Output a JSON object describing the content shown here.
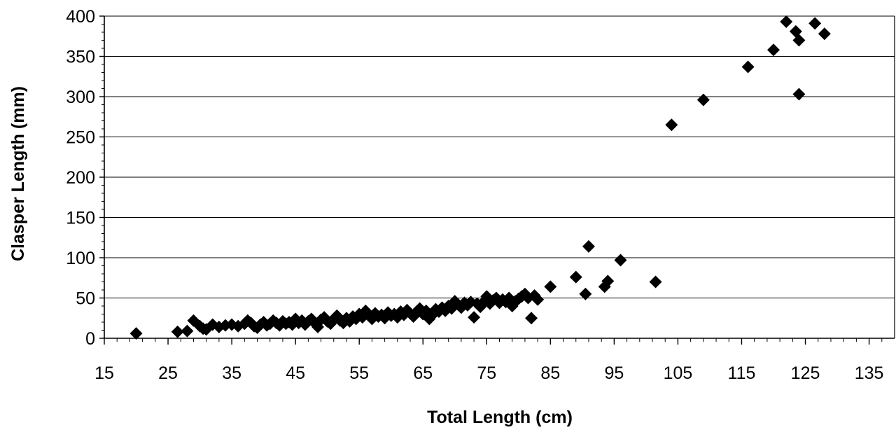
{
  "chart_data": {
    "type": "scatter",
    "title": "",
    "xlabel": "Total Length (cm)",
    "ylabel": "Clasper Length (mm)",
    "xlim": [
      15,
      139
    ],
    "ylim": [
      0,
      400
    ],
    "x_ticks": [
      15,
      25,
      35,
      45,
      55,
      65,
      75,
      85,
      95,
      105,
      115,
      125,
      135
    ],
    "y_ticks": [
      0,
      50,
      100,
      150,
      200,
      250,
      300,
      350,
      400
    ],
    "x_minor_step": 2,
    "y_minor_step": 10,
    "grid": "horizontal",
    "legend": "none",
    "marker": "diamond",
    "marker_color": "#000000",
    "series": [
      {
        "points": [
          [
            20,
            6
          ],
          [
            26.5,
            8
          ],
          [
            28,
            9
          ],
          [
            29,
            22
          ],
          [
            30,
            15
          ],
          [
            30.5,
            12
          ],
          [
            31,
            11
          ],
          [
            32,
            17
          ],
          [
            33,
            14
          ],
          [
            34,
            16
          ],
          [
            35,
            17
          ],
          [
            36,
            15
          ],
          [
            37,
            18
          ],
          [
            37.5,
            22
          ],
          [
            38,
            19
          ],
          [
            38.5,
            15
          ],
          [
            39,
            13
          ],
          [
            39.5,
            17
          ],
          [
            40,
            20
          ],
          [
            40.5,
            16
          ],
          [
            41,
            18
          ],
          [
            41.5,
            22
          ],
          [
            42,
            19
          ],
          [
            42.5,
            16
          ],
          [
            43,
            21
          ],
          [
            43.5,
            18
          ],
          [
            44,
            20
          ],
          [
            44.5,
            17
          ],
          [
            45,
            24
          ],
          [
            45.5,
            19
          ],
          [
            46,
            22
          ],
          [
            46.5,
            17
          ],
          [
            47,
            21
          ],
          [
            47.5,
            24
          ],
          [
            48,
            19
          ],
          [
            48.5,
            14
          ],
          [
            49,
            23
          ],
          [
            49.5,
            26
          ],
          [
            50,
            21
          ],
          [
            50.5,
            18
          ],
          [
            51,
            24
          ],
          [
            51.5,
            28
          ],
          [
            52,
            22
          ],
          [
            52.5,
            19
          ],
          [
            53,
            25
          ],
          [
            53.5,
            21
          ],
          [
            54,
            27
          ],
          [
            54.5,
            24
          ],
          [
            55,
            30
          ],
          [
            55.5,
            26
          ],
          [
            56,
            34
          ],
          [
            56.5,
            28
          ],
          [
            57,
            24
          ],
          [
            57.5,
            31
          ],
          [
            58,
            27
          ],
          [
            58.5,
            29
          ],
          [
            59,
            25
          ],
          [
            59.5,
            32
          ],
          [
            60,
            28
          ],
          [
            60.5,
            30
          ],
          [
            61,
            26
          ],
          [
            61.5,
            33
          ],
          [
            62,
            29
          ],
          [
            62.5,
            35
          ],
          [
            63,
            31
          ],
          [
            63.5,
            27
          ],
          [
            64,
            33
          ],
          [
            64.5,
            37
          ],
          [
            65,
            30
          ],
          [
            65.5,
            34
          ],
          [
            66,
            24
          ],
          [
            66.5,
            29
          ],
          [
            67,
            36
          ],
          [
            67.5,
            33
          ],
          [
            68,
            38
          ],
          [
            68.5,
            34
          ],
          [
            69,
            40
          ],
          [
            69.5,
            37
          ],
          [
            70,
            46
          ],
          [
            70.5,
            42
          ],
          [
            71,
            38
          ],
          [
            71.5,
            44
          ],
          [
            72,
            41
          ],
          [
            72.5,
            45
          ],
          [
            73,
            26
          ],
          [
            73.5,
            43
          ],
          [
            74,
            39
          ],
          [
            74.5,
            45
          ],
          [
            75,
            52
          ],
          [
            75.5,
            43
          ],
          [
            76,
            47
          ],
          [
            76.5,
            50
          ],
          [
            77,
            44
          ],
          [
            77.5,
            48
          ],
          [
            78,
            45
          ],
          [
            78.5,
            50
          ],
          [
            79,
            40
          ],
          [
            79.5,
            46
          ],
          [
            80,
            49
          ],
          [
            80.5,
            52
          ],
          [
            81,
            55
          ],
          [
            81.5,
            50
          ],
          [
            82,
            25
          ],
          [
            82.5,
            53
          ],
          [
            83,
            48
          ],
          [
            85,
            64
          ],
          [
            89,
            76
          ],
          [
            90.5,
            55
          ],
          [
            91,
            114
          ],
          [
            93.5,
            64
          ],
          [
            94,
            71
          ],
          [
            96,
            97
          ],
          [
            101.5,
            70
          ],
          [
            104,
            265
          ],
          [
            109,
            296
          ],
          [
            116,
            337
          ],
          [
            120,
            358
          ],
          [
            122,
            393
          ],
          [
            123.5,
            381
          ],
          [
            124,
            370
          ],
          [
            124,
            303
          ],
          [
            126.5,
            391
          ],
          [
            128,
            378
          ]
        ]
      }
    ]
  }
}
